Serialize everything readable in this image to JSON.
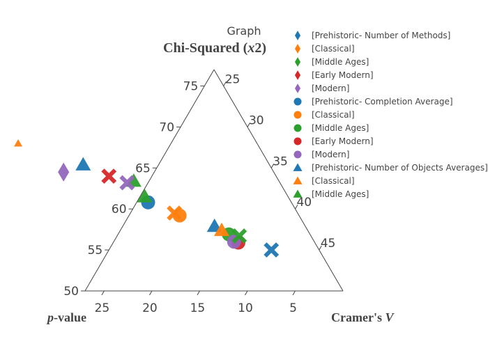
{
  "chart_data": {
    "type": "scatter",
    "subtype": "ternary",
    "heading": "Graph",
    "title": "Chi-Squared (x2)",
    "title_parts": {
      "text": "Chi-Squared (",
      "var": "x",
      "tail": "2)"
    },
    "axes": {
      "a": {
        "label": "Chi-Squared (x2)",
        "range": [
          50,
          77
        ],
        "ticks": [
          50,
          55,
          60,
          65,
          70,
          75
        ],
        "tick_labels": [
          "50",
          "55",
          "60",
          "65",
          "70",
          "75"
        ]
      },
      "b": {
        "label": "p-value",
        "label_parts": {
          "var": "p",
          "text": "-value"
        },
        "range": [
          0,
          27
        ],
        "ticks": [
          5,
          10,
          15,
          20,
          25
        ],
        "tick_labels": [
          "5",
          "10",
          "15",
          "20",
          "25"
        ]
      },
      "c": {
        "label": "Cramer's V",
        "label_parts": {
          "text": "Cramer's ",
          "var": "V"
        },
        "range": [
          23,
          50
        ],
        "ticks": [
          25,
          30,
          35,
          40,
          45
        ],
        "tick_labels": [
          "25",
          "30",
          "35",
          "40",
          "45"
        ]
      }
    },
    "grid": true,
    "legend_position": "right",
    "sum": 100,
    "series": [
      {
        "name": "[Prehistoric- Number of Methods]",
        "symbol": "diamond",
        "color": "#1f77b4",
        "points": []
      },
      {
        "name": "[Classical]",
        "symbol": "diamond",
        "color": "#ff7f0e",
        "points": []
      },
      {
        "name": "[Middle Ages]",
        "symbol": "diamond",
        "color": "#2ca02c",
        "points": []
      },
      {
        "name": "[Early Modern]",
        "symbol": "diamond",
        "color": "#d62728",
        "points": []
      },
      {
        "name": "[Modern]",
        "symbol": "diamond",
        "color": "#9467bd",
        "points": [
          {
            "a": 64.5,
            "b": 22.0,
            "c": 13.5
          }
        ]
      },
      {
        "name": "[Prehistoric- Completion Average]",
        "symbol": "circle",
        "color": "#1f77b4",
        "points": [
          {
            "a": 60.8,
            "b": 15.0,
            "c": 24.2
          }
        ]
      },
      {
        "name": "[Classical]",
        "symbol": "circle",
        "color": "#ff7f0e",
        "points": [
          {
            "a": 59.2,
            "b": 12.5,
            "c": 28.3
          }
        ]
      },
      {
        "name": "[Middle Ages]",
        "symbol": "circle",
        "color": "#2ca02c",
        "points": [
          {
            "a": 56.9,
            "b": 8.5,
            "c": 34.6
          }
        ]
      },
      {
        "name": "[Early Modern]",
        "symbol": "circle",
        "color": "#d62728",
        "points": [
          {
            "a": 55.9,
            "b": 8.0,
            "c": 36.1
          }
        ]
      },
      {
        "name": "[Modern]",
        "symbol": "circle",
        "color": "#9467bd",
        "points": [
          {
            "a": 56.0,
            "b": 8.4,
            "c": 35.6
          }
        ]
      },
      {
        "name": "[Prehistoric- Number of Objects Averages]",
        "symbol": "triangle-up",
        "color": "#1f77b4",
        "points": [
          {
            "a": 65.4,
            "b": 19.5,
            "c": 15.1
          },
          {
            "a": 57.9,
            "b": 9.5,
            "c": 32.6
          }
        ]
      },
      {
        "name": "[Classical]",
        "symbol": "triangle-up",
        "color": "#ff7f0e",
        "points": [
          {
            "a": 68.0,
            "b": 25.0,
            "c": 7.0
          },
          {
            "a": 57.4,
            "b": 9.0,
            "c": 33.6
          }
        ]
      },
      {
        "name": "[Middle Ages]",
        "symbol": "triangle-up",
        "color": "#2ca02c",
        "points": [
          {
            "a": 63.4,
            "b": 15.2,
            "c": 21.4
          },
          {
            "a": 61.5,
            "b": 15.0,
            "c": 23.5
          }
        ]
      },
      {
        "name": "",
        "symbol": "x",
        "color": "#1f77b4",
        "points": [
          {
            "a": 55.0,
            "b": 5.0,
            "c": 40.0
          }
        ]
      },
      {
        "name": "",
        "symbol": "x",
        "color": "#ff7f0e",
        "points": [
          {
            "a": 59.5,
            "b": 12.9,
            "c": 27.6
          }
        ]
      },
      {
        "name": "",
        "symbol": "x",
        "color": "#2ca02c",
        "points": [
          {
            "a": 56.7,
            "b": 7.5,
            "c": 35.8
          }
        ]
      },
      {
        "name": "",
        "symbol": "x",
        "color": "#d62728",
        "points": [
          {
            "a": 64.0,
            "b": 17.5,
            "c": 18.5
          }
        ]
      },
      {
        "name": "",
        "symbol": "x",
        "color": "#9467bd",
        "points": [
          {
            "a": 63.2,
            "b": 16.0,
            "c": 20.8
          }
        ]
      }
    ]
  }
}
